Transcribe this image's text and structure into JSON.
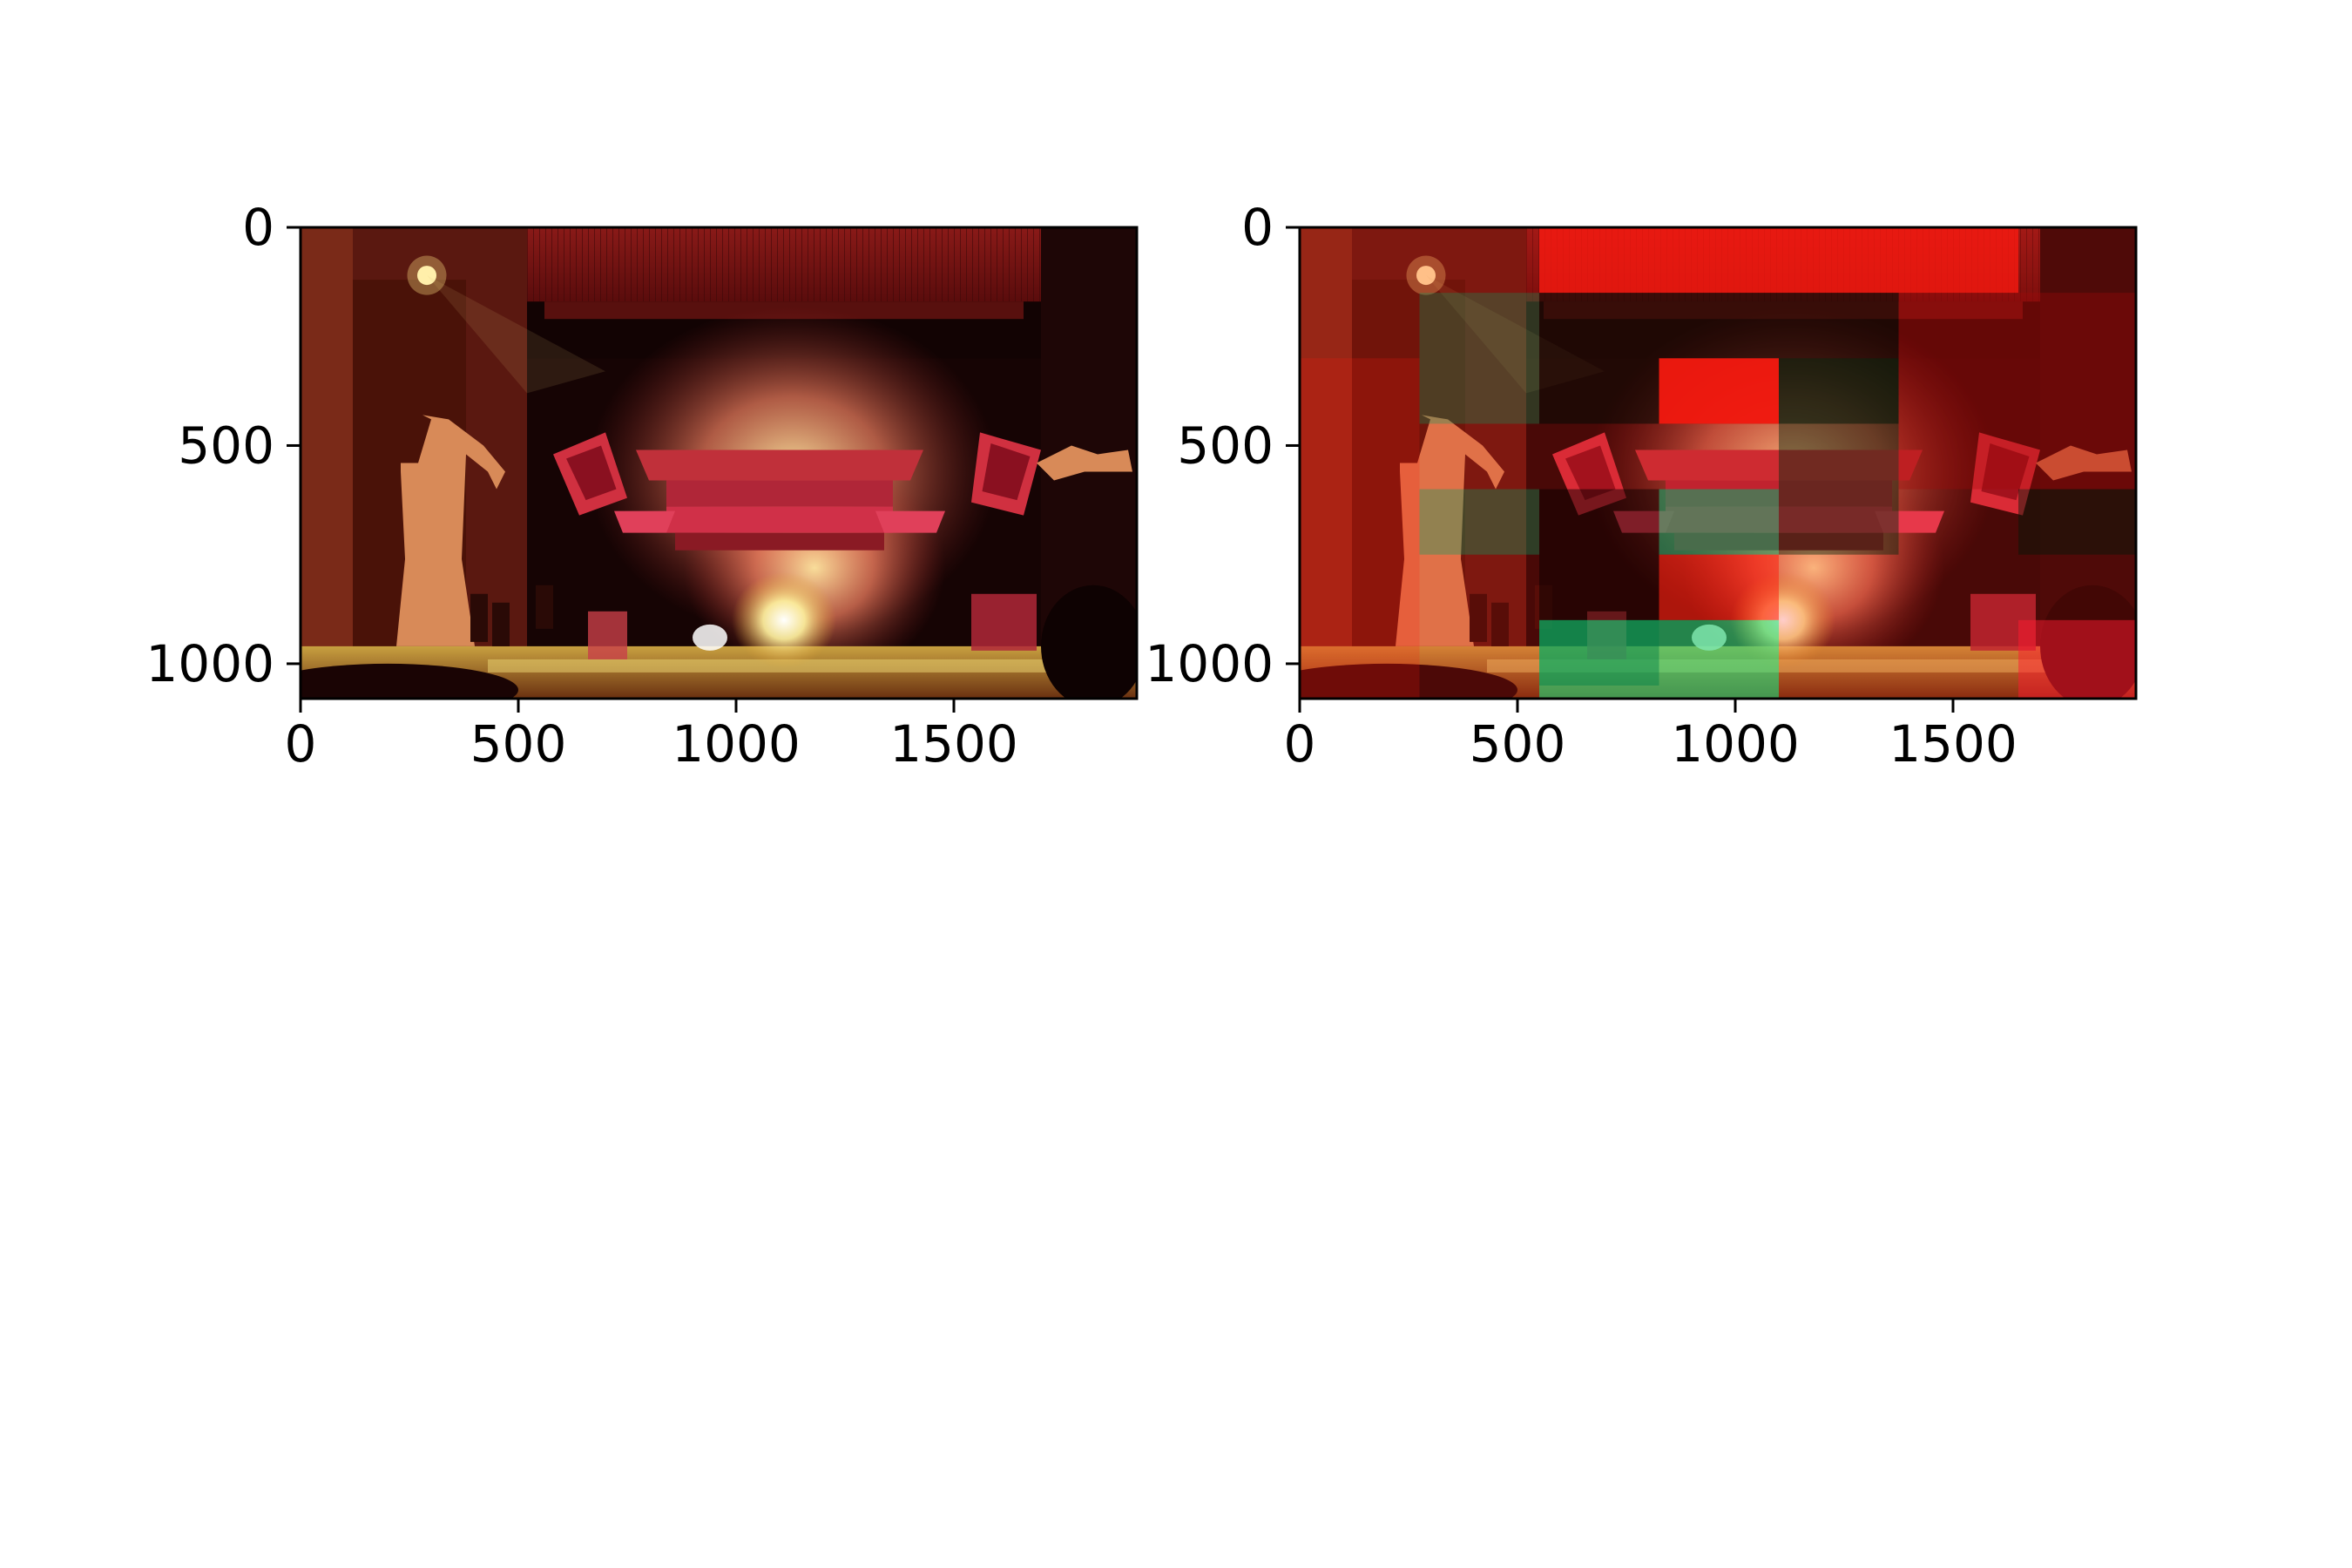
{
  "chart_data": [
    {
      "type": "image",
      "title": "",
      "xlabel": "",
      "ylabel": "",
      "xlim": [
        0,
        1920
      ],
      "ylim": [
        1080,
        0
      ],
      "x_ticks": [
        0,
        500,
        1000,
        1500
      ],
      "y_ticks": [
        0,
        500,
        1000
      ],
      "x_tick_labels": [
        "0",
        "500",
        "1000",
        "1500"
      ],
      "y_tick_labels": [
        "0",
        "500",
        "1000"
      ],
      "image_description": "Water puppet theatre stage under red lighting with smoke, pavilion roof, banners, tree cutouts and musicians"
    },
    {
      "type": "image",
      "title": "",
      "xlabel": "",
      "ylabel": "",
      "xlim": [
        0,
        1920
      ],
      "ylim": [
        1080,
        0
      ],
      "x_ticks": [
        0,
        500,
        1000,
        1500
      ],
      "y_ticks": [
        0,
        500,
        1000
      ],
      "x_tick_labels": [
        "0",
        "500",
        "1000",
        "1500"
      ],
      "y_tick_labels": [
        "0",
        "500",
        "1000"
      ],
      "overlay": "block-wise red/green tinted patches over the same stage photo",
      "image_description": "Same stage photo with per-block colour-shift overlay"
    }
  ],
  "colors": {
    "stage_dark": "#1a0505",
    "stage_red": "#c0202a",
    "smoke": "#f4a070",
    "floor_glow": "#e8d050",
    "overlay_red": "#ff1a10",
    "overlay_green": "#00a060",
    "overlay_green_bright": "#00ff90"
  }
}
